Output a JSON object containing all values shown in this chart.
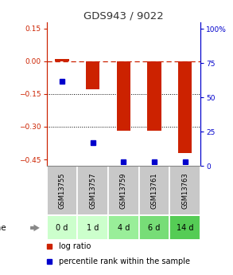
{
  "title": "GDS943 / 9022",
  "samples": [
    "GSM13755",
    "GSM13757",
    "GSM13759",
    "GSM13761",
    "GSM13763"
  ],
  "time_labels": [
    "0 d",
    "1 d",
    "4 d",
    "6 d",
    "14 d"
  ],
  "log_ratios": [
    0.01,
    -0.13,
    -0.32,
    -0.32,
    -0.42
  ],
  "percentile_ranks": [
    62,
    17,
    3,
    3,
    3
  ],
  "ylim_left": [
    -0.48,
    0.18
  ],
  "ylim_right": [
    0,
    105
  ],
  "yticks_left": [
    0.15,
    0,
    -0.15,
    -0.3,
    -0.45
  ],
  "yticks_right": [
    100,
    75,
    50,
    25,
    0
  ],
  "bar_color": "#cc2200",
  "dot_color": "#0000cc",
  "background_color": "#ffffff",
  "gsm_bg_color": "#c8c8c8",
  "time_bg_colors": [
    "#ccffcc",
    "#ccffcc",
    "#99ee99",
    "#77dd77",
    "#55cc55"
  ],
  "title_color": "#333333",
  "left_axis_color": "#cc2200",
  "right_axis_color": "#0000cc",
  "bar_width": 0.45,
  "figsize": [
    2.93,
    3.45
  ],
  "dpi": 100
}
